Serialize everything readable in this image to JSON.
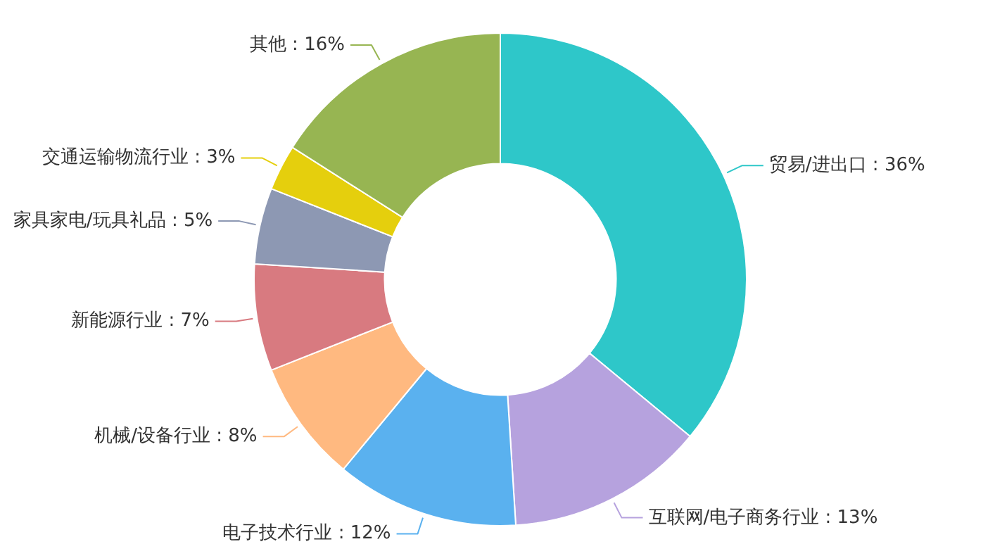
{
  "chart_data": {
    "type": "donut",
    "categories": [
      "贸易/进出口",
      "互联网/电子商务行业",
      "电子技术行业",
      "机械/设备行业",
      "新能源行业",
      "家具家电/玩具礼品",
      "交通运输物流行业",
      "其他"
    ],
    "values": [
      36,
      13,
      12,
      8,
      7,
      5,
      3,
      16
    ],
    "colors": [
      "#2ec7c9",
      "#b6a2de",
      "#5ab1ef",
      "#ffb980",
      "#d87a80",
      "#8d98b3",
      "#e5cf0d",
      "#97b552"
    ],
    "value_labels": [
      "36%",
      "13%",
      "12%",
      "8%",
      "7%",
      "5%",
      "3%",
      "16%"
    ]
  }
}
